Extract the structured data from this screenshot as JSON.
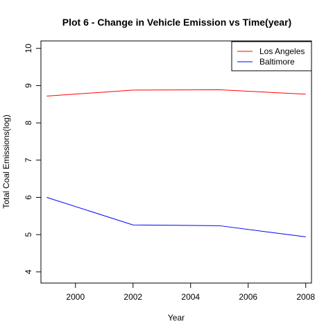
{
  "chart_data": {
    "type": "line",
    "title": "Plot 6 - Change in Vehicle Emission vs Time(year)",
    "xlabel": "Year",
    "ylabel": "Total Coal Emissions(log)",
    "x": [
      1999,
      2002,
      2005,
      2008
    ],
    "xlim": [
      1998.8,
      2008.2
    ],
    "ylim": [
      3.7,
      10.2
    ],
    "xticks": [
      "2000",
      "2002",
      "2004",
      "2006",
      "2008"
    ],
    "yticks": [
      "4",
      "5",
      "6",
      "7",
      "8",
      "9",
      "10"
    ],
    "series": [
      {
        "name": "Los Angeles",
        "color": "#ff0000",
        "values": [
          8.72,
          8.88,
          8.89,
          8.77
        ]
      },
      {
        "name": "Baltimore",
        "color": "#0000ff",
        "values": [
          6.0,
          5.26,
          5.24,
          4.94
        ]
      }
    ],
    "grid": false,
    "legend_position": "top-right"
  }
}
